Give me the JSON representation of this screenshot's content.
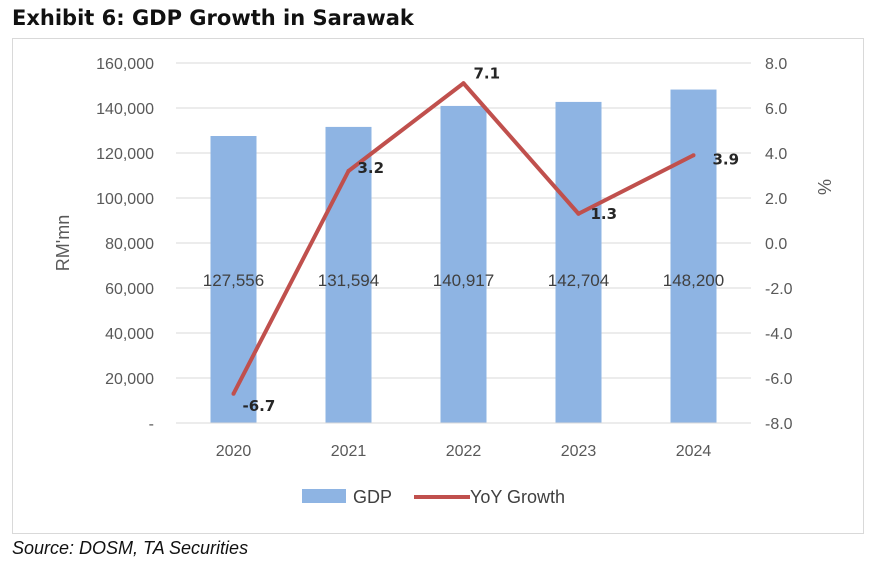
{
  "title": "Exhibit 6: GDP Growth in Sarawak",
  "source": "Source: DOSM, TA Securities",
  "colors": {
    "bar": "#8eb4e3",
    "line": "#c0504d",
    "grid": "#d9d9d9"
  },
  "chart_data": {
    "type": "bar",
    "categories": [
      "2020",
      "2021",
      "2022",
      "2023",
      "2024"
    ],
    "series": [
      {
        "name": "GDP",
        "type": "bar",
        "axis": "left",
        "values": [
          127556,
          131594,
          140917,
          142704,
          148200
        ]
      },
      {
        "name": "YoY Growth",
        "type": "line",
        "axis": "right",
        "values": [
          -6.7,
          3.2,
          7.1,
          1.3,
          3.9
        ]
      }
    ],
    "bar_labels": [
      "127,556",
      "131,594",
      "140,917",
      "142,704",
      "148,200"
    ],
    "line_labels": [
      "-6.7",
      "3.2",
      "7.1",
      "1.3",
      "3.9"
    ],
    "ylabel": "RM'mn",
    "y2label": "%",
    "ylim": [
      0,
      160000
    ],
    "y2lim": [
      -8,
      8
    ],
    "yticks": [
      0,
      20000,
      40000,
      60000,
      80000,
      100000,
      120000,
      140000,
      160000
    ],
    "ytick_labels": [
      "-",
      "20,000",
      "40,000",
      "60,000",
      "80,000",
      "100,000",
      "120,000",
      "140,000",
      "160,000"
    ],
    "y2ticks": [
      -8,
      -6,
      -4,
      -2,
      0,
      2,
      4,
      6,
      8
    ],
    "y2tick_labels": [
      "-8.0",
      "-6.0",
      "-4.0",
      "-2.0",
      "0.0",
      "2.0",
      "4.0",
      "6.0",
      "8.0"
    ],
    "legend": [
      "GDP",
      "YoY Growth"
    ],
    "legend_position": "bottom",
    "grid": true
  }
}
